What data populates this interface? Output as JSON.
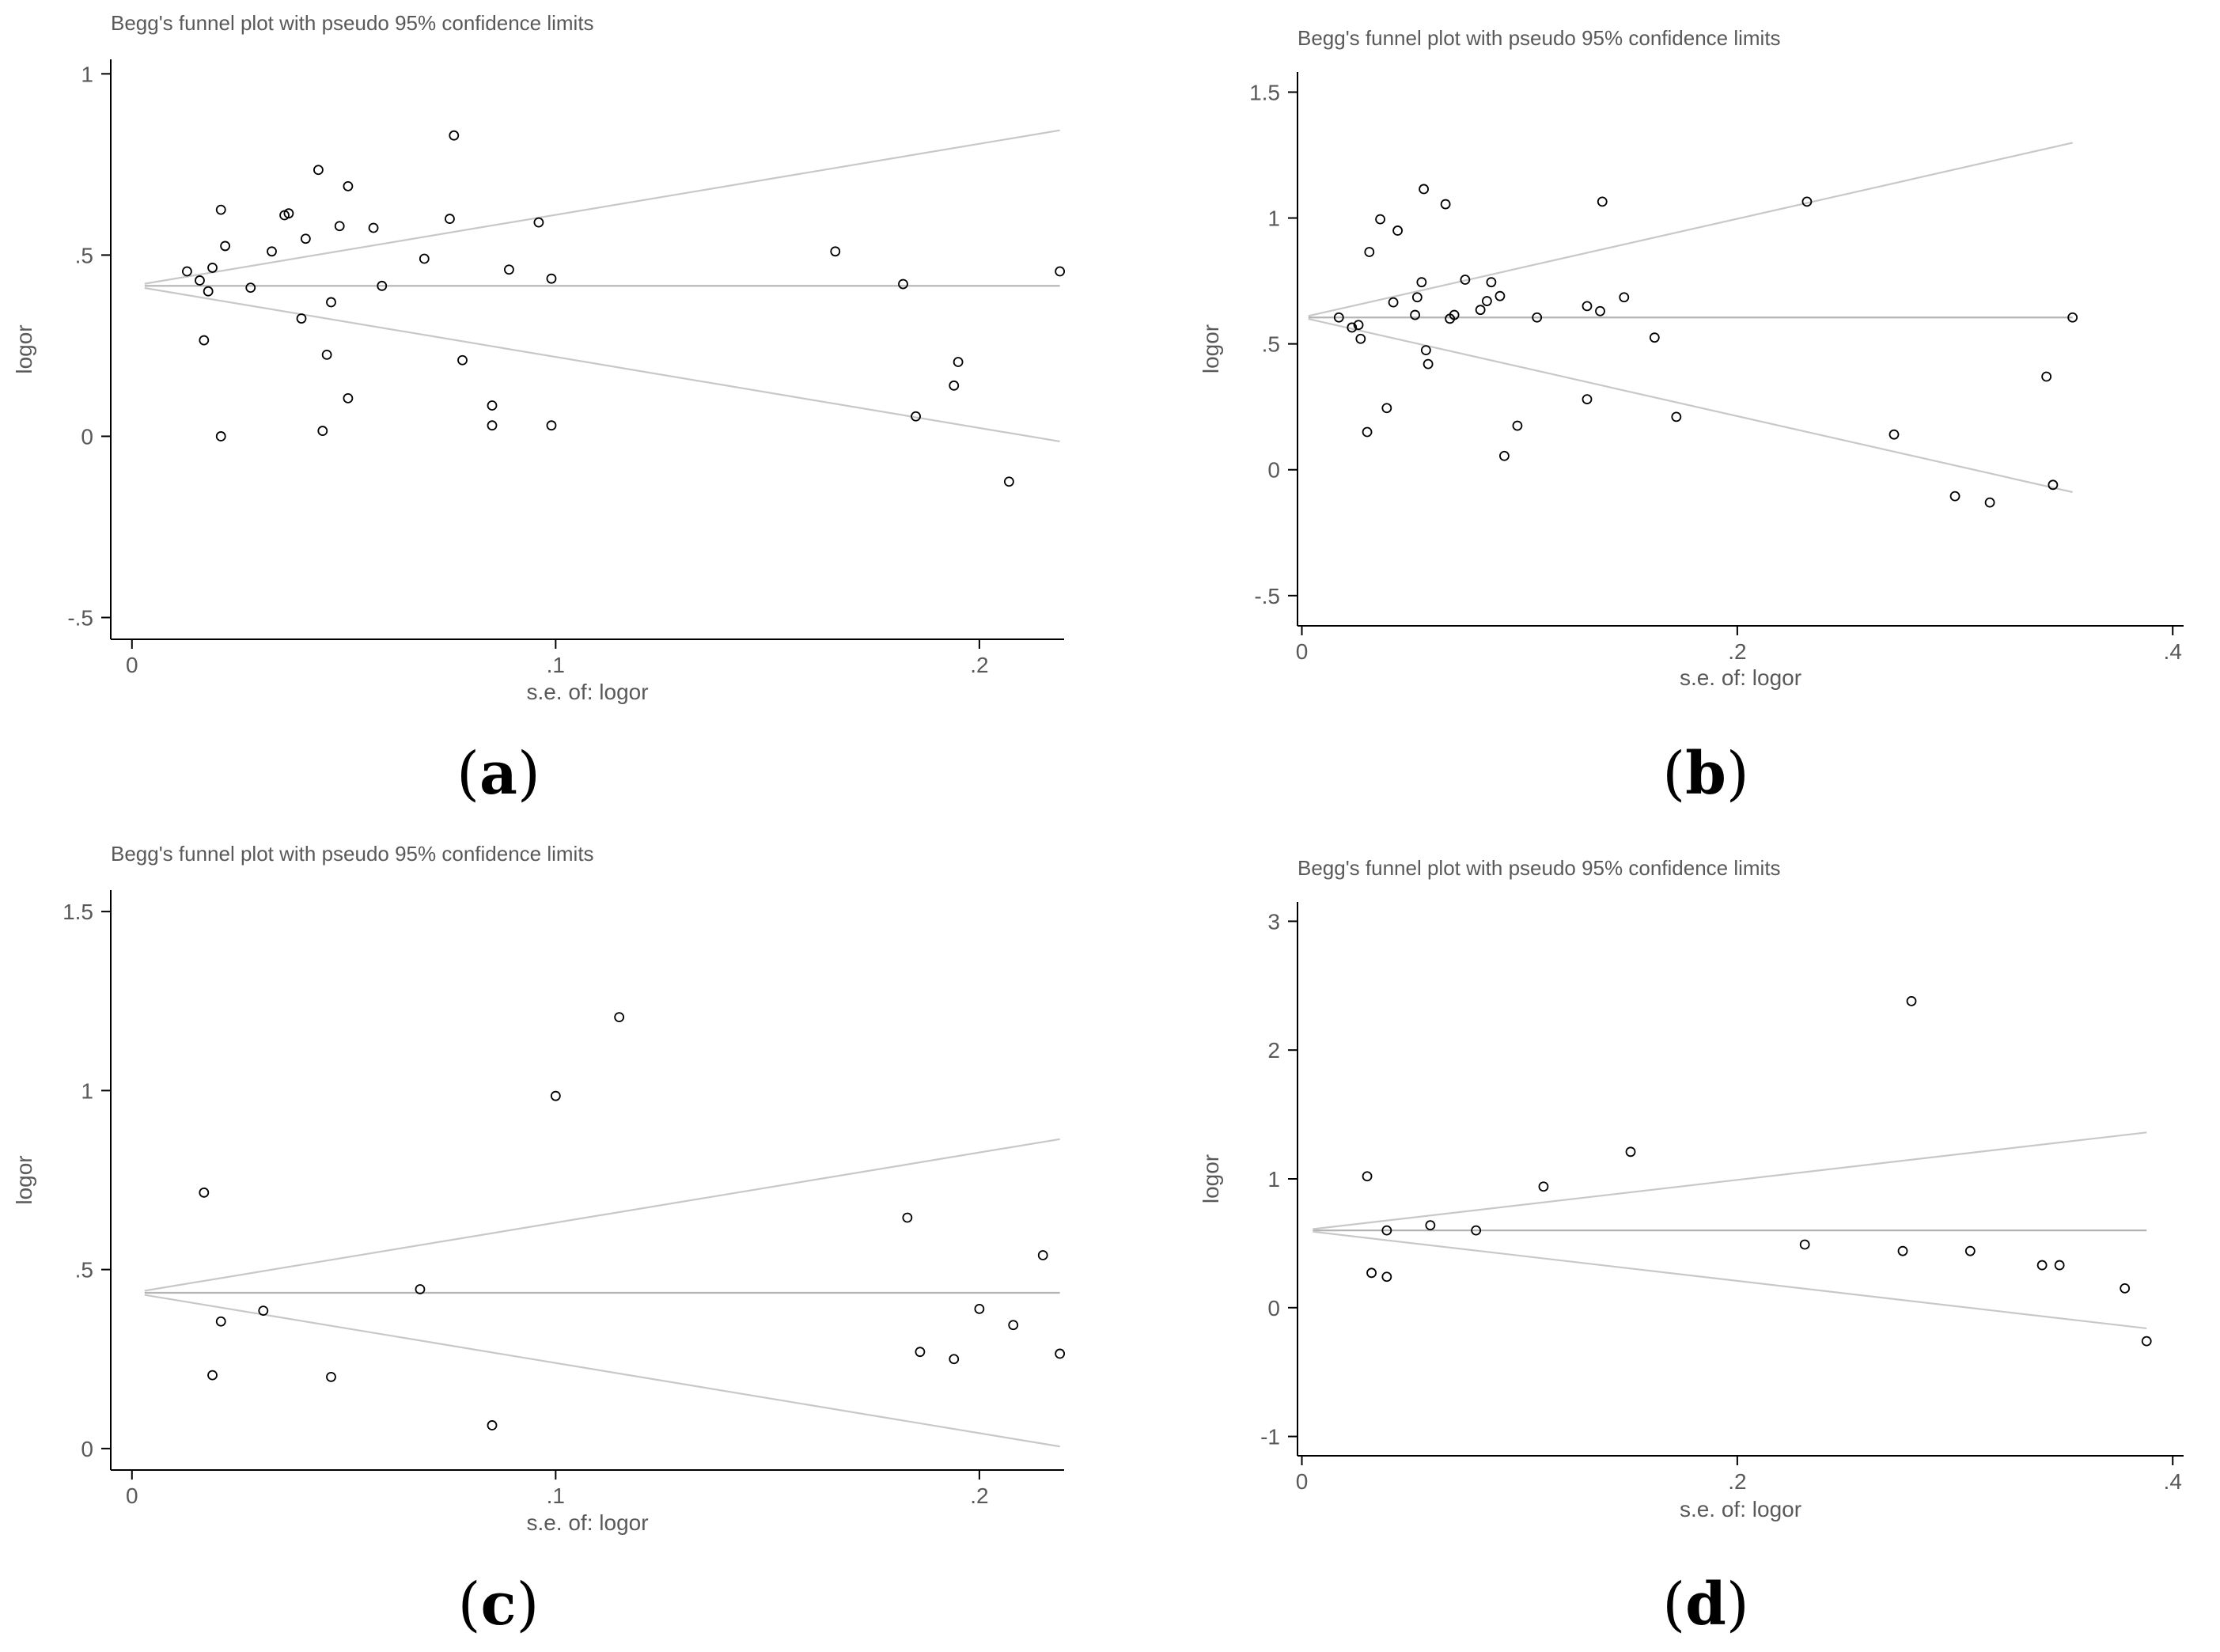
{
  "panel_labels": {
    "a": "a",
    "b": "b",
    "c": "c",
    "d": "d"
  },
  "colors": {
    "text": "#595959",
    "axis": "#000000",
    "center_line": "#b4b4b4",
    "limit_line": "#c8c8c8",
    "point": "#000000",
    "background": "#ffffff"
  },
  "chart_data": [
    {
      "id": "a",
      "type": "scatter",
      "title": "Begg's funnel plot with pseudo 95% confidence limits",
      "xlabel": "s.e. of: logor",
      "ylabel": "logor",
      "xlim": [
        -0.005,
        0.22
      ],
      "ylim": [
        -0.56,
        1.04
      ],
      "xticks": [
        0,
        0.1,
        0.2
      ],
      "xtick_labels": [
        "0",
        ".1",
        ".2"
      ],
      "yticks": [
        -0.5,
        0,
        0.5,
        1
      ],
      "ytick_labels": [
        "-.5",
        "0",
        ".5",
        "1"
      ],
      "pooled_estimate": 0.415,
      "lines_x_range": [
        0.003,
        0.219
      ],
      "points": [
        [
          0.013,
          0.455
        ],
        [
          0.016,
          0.43
        ],
        [
          0.017,
          0.265
        ],
        [
          0.018,
          0.4
        ],
        [
          0.019,
          0.465
        ],
        [
          0.021,
          0.625
        ],
        [
          0.021,
          0.0
        ],
        [
          0.022,
          0.525
        ],
        [
          0.028,
          0.41
        ],
        [
          0.033,
          0.51
        ],
        [
          0.036,
          0.61
        ],
        [
          0.037,
          0.615
        ],
        [
          0.04,
          0.325
        ],
        [
          0.041,
          0.545
        ],
        [
          0.044,
          0.735
        ],
        [
          0.045,
          0.015
        ],
        [
          0.046,
          0.225
        ],
        [
          0.047,
          0.37
        ],
        [
          0.049,
          0.58
        ],
        [
          0.051,
          0.69
        ],
        [
          0.051,
          0.105
        ],
        [
          0.057,
          0.575
        ],
        [
          0.059,
          0.415
        ],
        [
          0.069,
          0.49
        ],
        [
          0.075,
          0.6
        ],
        [
          0.076,
          0.83
        ],
        [
          0.078,
          0.21
        ],
        [
          0.085,
          0.085
        ],
        [
          0.085,
          0.03
        ],
        [
          0.089,
          0.46
        ],
        [
          0.096,
          0.59
        ],
        [
          0.099,
          0.435
        ],
        [
          0.099,
          0.03
        ],
        [
          0.166,
          0.51
        ],
        [
          0.182,
          0.42
        ],
        [
          0.185,
          0.055
        ],
        [
          0.194,
          0.14
        ],
        [
          0.195,
          0.205
        ],
        [
          0.207,
          -0.125
        ],
        [
          0.219,
          0.455
        ]
      ]
    },
    {
      "id": "b",
      "type": "scatter",
      "title": "Begg's funnel plot with pseudo 95% confidence limits",
      "xlabel": "s.e. of: logor",
      "ylabel": "logor",
      "xlim": [
        -0.002,
        0.405
      ],
      "ylim": [
        -0.62,
        1.58
      ],
      "xticks": [
        0,
        0.2,
        0.4
      ],
      "xtick_labels": [
        "0",
        ".2",
        ".4"
      ],
      "yticks": [
        -0.5,
        0,
        0.5,
        1,
        1.5
      ],
      "ytick_labels": [
        "-.5",
        "0",
        ".5",
        "1",
        "1.5"
      ],
      "pooled_estimate": 0.605,
      "lines_x_range": [
        0.003,
        0.354
      ],
      "points": [
        [
          0.017,
          0.605
        ],
        [
          0.023,
          0.565
        ],
        [
          0.026,
          0.575
        ],
        [
          0.027,
          0.52
        ],
        [
          0.03,
          0.15
        ],
        [
          0.031,
          0.865
        ],
        [
          0.036,
          0.995
        ],
        [
          0.039,
          0.245
        ],
        [
          0.042,
          0.665
        ],
        [
          0.044,
          0.95
        ],
        [
          0.052,
          0.615
        ],
        [
          0.053,
          0.685
        ],
        [
          0.055,
          0.745
        ],
        [
          0.056,
          1.115
        ],
        [
          0.057,
          0.475
        ],
        [
          0.058,
          0.42
        ],
        [
          0.066,
          1.055
        ],
        [
          0.068,
          0.6
        ],
        [
          0.07,
          0.615
        ],
        [
          0.075,
          0.755
        ],
        [
          0.082,
          0.635
        ],
        [
          0.085,
          0.67
        ],
        [
          0.087,
          0.745
        ],
        [
          0.091,
          0.69
        ],
        [
          0.093,
          0.055
        ],
        [
          0.099,
          0.175
        ],
        [
          0.108,
          0.605
        ],
        [
          0.131,
          0.28
        ],
        [
          0.131,
          0.65
        ],
        [
          0.137,
          0.63
        ],
        [
          0.138,
          1.065
        ],
        [
          0.148,
          0.685
        ],
        [
          0.162,
          0.525
        ],
        [
          0.172,
          0.21
        ],
        [
          0.232,
          1.065
        ],
        [
          0.272,
          0.14
        ],
        [
          0.3,
          -0.105
        ],
        [
          0.316,
          -0.13
        ],
        [
          0.342,
          0.37
        ],
        [
          0.345,
          -0.06
        ],
        [
          0.354,
          0.605
        ]
      ]
    },
    {
      "id": "c",
      "type": "scatter",
      "title": "Begg's funnel plot with pseudo 95% confidence limits",
      "xlabel": "s.e. of: logor",
      "ylabel": "logor",
      "xlim": [
        -0.005,
        0.22
      ],
      "ylim": [
        -0.06,
        1.56
      ],
      "xticks": [
        0,
        0.1,
        0.2
      ],
      "xtick_labels": [
        "0",
        ".1",
        ".2"
      ],
      "yticks": [
        0,
        0.5,
        1,
        1.5
      ],
      "ytick_labels": [
        "0",
        ".5",
        "1",
        "1.5"
      ],
      "pooled_estimate": 0.435,
      "lines_x_range": [
        0.003,
        0.219
      ],
      "points": [
        [
          0.017,
          0.715
        ],
        [
          0.019,
          0.205
        ],
        [
          0.021,
          0.355
        ],
        [
          0.031,
          0.385
        ],
        [
          0.047,
          0.2
        ],
        [
          0.068,
          0.445
        ],
        [
          0.085,
          0.065
        ],
        [
          0.1,
          0.985
        ],
        [
          0.115,
          1.205
        ],
        [
          0.183,
          0.645
        ],
        [
          0.186,
          0.27
        ],
        [
          0.194,
          0.25
        ],
        [
          0.2,
          0.39
        ],
        [
          0.208,
          0.345
        ],
        [
          0.215,
          0.54
        ],
        [
          0.219,
          0.265
        ]
      ]
    },
    {
      "id": "d",
      "type": "scatter",
      "title": "Begg's funnel plot with pseudo 95% confidence limits",
      "xlabel": "s.e. of: logor",
      "ylabel": "logor",
      "xlim": [
        -0.002,
        0.405
      ],
      "ylim": [
        -1.15,
        3.15
      ],
      "xticks": [
        0,
        0.2,
        0.4
      ],
      "xtick_labels": [
        "0",
        ".2",
        ".4"
      ],
      "yticks": [
        -1,
        0,
        1,
        2,
        3
      ],
      "ytick_labels": [
        "-1",
        "0",
        "1",
        "2",
        "3"
      ],
      "pooled_estimate": 0.6,
      "lines_x_range": [
        0.005,
        0.388
      ],
      "points": [
        [
          0.03,
          1.02
        ],
        [
          0.032,
          0.27
        ],
        [
          0.039,
          0.6
        ],
        [
          0.039,
          0.24
        ],
        [
          0.059,
          0.64
        ],
        [
          0.08,
          0.6
        ],
        [
          0.111,
          0.94
        ],
        [
          0.151,
          1.21
        ],
        [
          0.231,
          0.49
        ],
        [
          0.276,
          0.44
        ],
        [
          0.28,
          2.38
        ],
        [
          0.307,
          0.44
        ],
        [
          0.34,
          0.33
        ],
        [
          0.348,
          0.33
        ],
        [
          0.378,
          0.15
        ],
        [
          0.388,
          -0.26
        ]
      ]
    }
  ]
}
